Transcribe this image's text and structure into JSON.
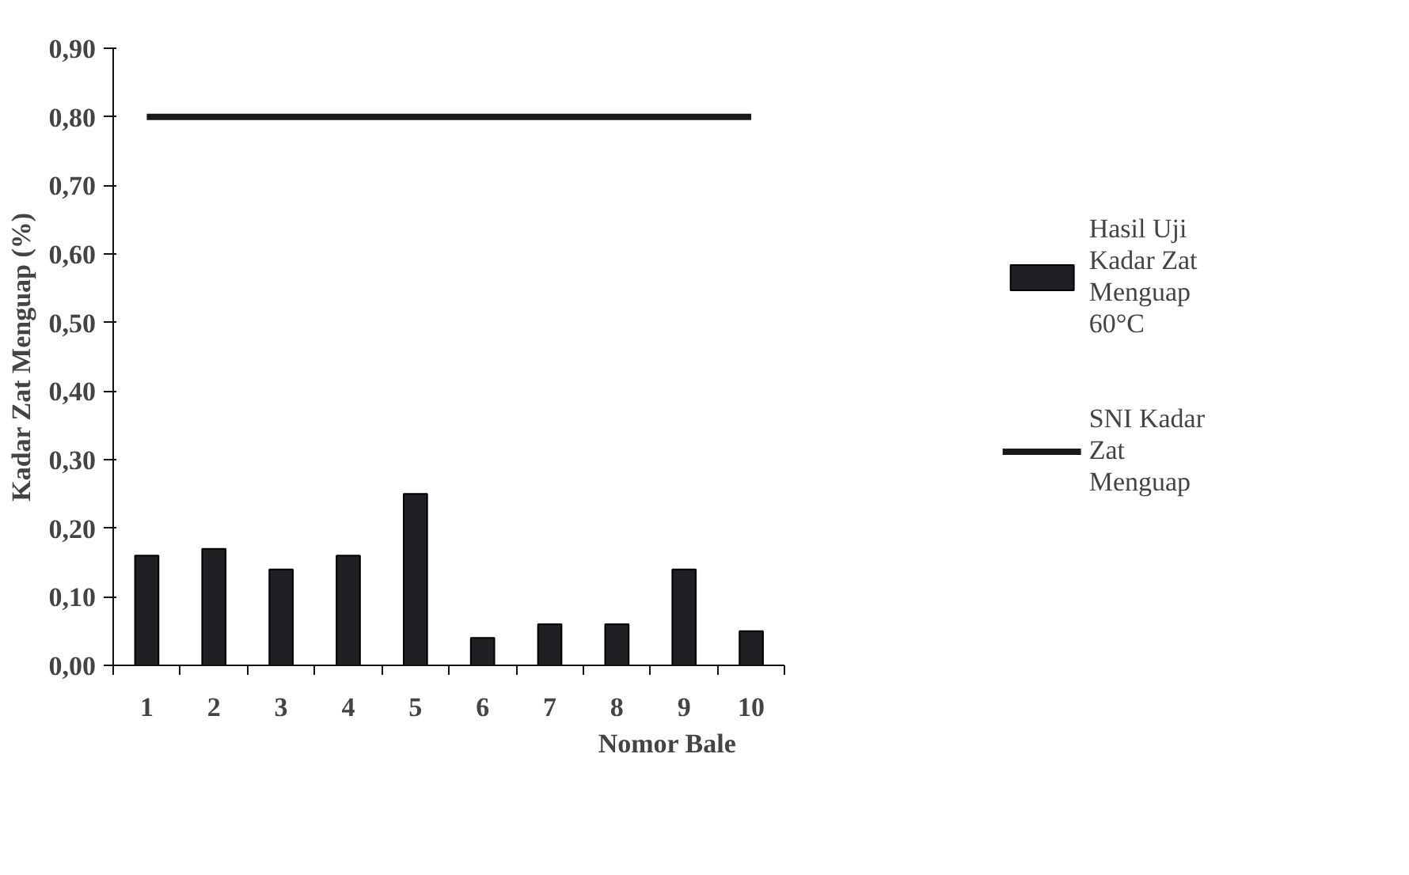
{
  "chart_data": {
    "type": "bar",
    "xlabel": "Nomor Bale",
    "ylabel": "Kadar Zat Menguap (%)",
    "categories": [
      "1",
      "2",
      "3",
      "4",
      "5",
      "6",
      "7",
      "8",
      "9",
      "10"
    ],
    "series": [
      {
        "name": "Hasil Uji Kadar Zat Menguap 60°C",
        "color": "#1f1f24",
        "values": [
          0.16,
          0.17,
          0.14,
          0.16,
          0.25,
          0.04,
          0.06,
          0.06,
          0.14,
          0.05
        ]
      },
      {
        "name": "SNI Kadar Zat Menguap",
        "type": "line",
        "color": "#1a1a1a",
        "values": [
          0.8,
          0.8,
          0.8,
          0.8,
          0.8,
          0.8,
          0.8,
          0.8,
          0.8,
          0.8
        ]
      }
    ],
    "ylim": [
      0,
      0.9
    ],
    "yticks": [
      {
        "value": 0,
        "label": "0,00"
      },
      {
        "value": 0.1,
        "label": "0,10"
      },
      {
        "value": 0.2,
        "label": "0,20"
      },
      {
        "value": 0.3,
        "label": "0,30"
      },
      {
        "value": 0.4,
        "label": "0,40"
      },
      {
        "value": 0.5,
        "label": "0,50"
      },
      {
        "value": 0.6,
        "label": "0,60"
      },
      {
        "value": 0.7,
        "label": "0,70"
      },
      {
        "value": 0.8,
        "label": "0,80"
      },
      {
        "value": 0.9,
        "label": "0,90"
      }
    ],
    "grid": false,
    "legend": "right"
  }
}
